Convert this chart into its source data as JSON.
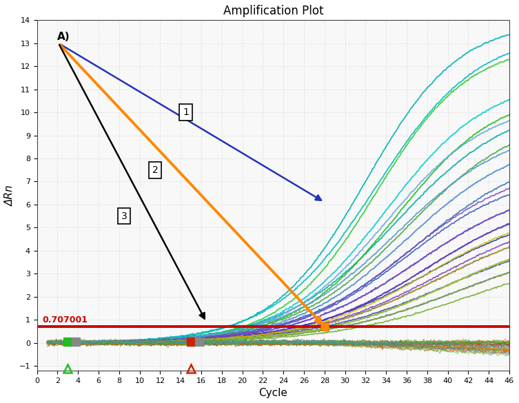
{
  "title": "Amplification Plot",
  "xlabel": "Cycle",
  "ylabel": "ΔRn",
  "xlim": [
    0,
    46
  ],
  "ylim": [
    -1.2,
    14
  ],
  "xticks": [
    0,
    2,
    4,
    6,
    8,
    10,
    12,
    14,
    16,
    18,
    20,
    22,
    24,
    26,
    28,
    30,
    32,
    34,
    36,
    38,
    40,
    42,
    44,
    46
  ],
  "yticks": [
    -1,
    0,
    1,
    2,
    3,
    4,
    5,
    6,
    7,
    8,
    9,
    10,
    11,
    12,
    13,
    14
  ],
  "threshold": 0.707001,
  "threshold_color": "#cc0000",
  "bg_color": "#f8f8f8",
  "grid_color": "#cccccc"
}
